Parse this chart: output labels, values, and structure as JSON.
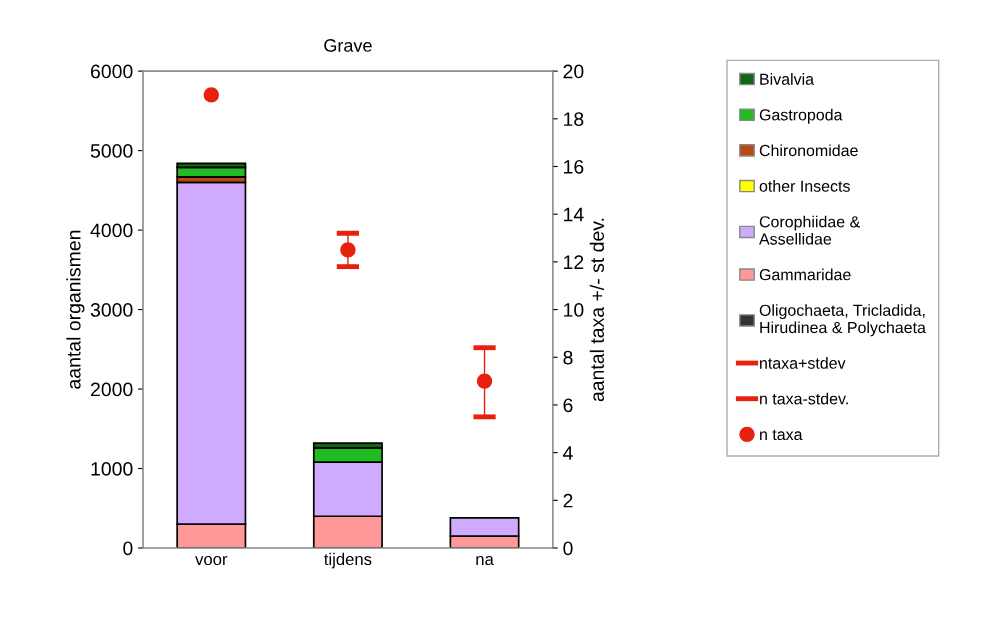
{
  "chart_data": {
    "type": "bar",
    "title": "Grave",
    "ylabel": "aantal organismen",
    "y2label": "aantal taxa +/- st dev.",
    "categories": [
      "voor",
      "tijdens",
      "na"
    ],
    "stacked": true,
    "ylim": [
      0,
      6000
    ],
    "yticks": [
      0,
      1000,
      2000,
      3000,
      4000,
      5000,
      6000
    ],
    "y2lim": [
      0,
      20
    ],
    "y2ticks": [
      0,
      2,
      4,
      6,
      8,
      10,
      12,
      14,
      16,
      18,
      20
    ],
    "legend": "right",
    "grid": false,
    "series": [
      {
        "name": "Oligochaeta, Tricladida, Hirudinea & Polychaeta",
        "color": "#333333",
        "values": [
          null,
          0,
          0
        ]
      },
      {
        "name": "Gammaridae",
        "color": "#ff9999",
        "values": [
          300,
          400,
          150
        ]
      },
      {
        "name": "Corophiidae & Assellidae",
        "color": "#cfaaff",
        "values": [
          4300,
          680,
          230
        ]
      },
      {
        "name": "other Insects",
        "color": "#ffff00",
        "values": [
          0,
          0,
          0
        ]
      },
      {
        "name": "Chironomidae",
        "color": "#b84a10",
        "values": [
          70,
          0,
          0
        ]
      },
      {
        "name": "Gastropoda",
        "color": "#22bb22",
        "values": [
          120,
          180,
          0
        ]
      },
      {
        "name": "Bivalvia",
        "color": "#116611",
        "values": [
          50,
          60,
          0
        ]
      },
      {
        "name": "ntaxa+stdev",
        "type": "scatter",
        "axis": "y2",
        "color": "#e82010",
        "values": [
          null,
          null,
          null
        ]
      },
      {
        "name": "n taxa-stdev.",
        "type": "scatter",
        "axis": "y2",
        "color": "#e82010",
        "values": [
          null,
          null,
          null
        ]
      },
      {
        "name": "n taxa",
        "type": "scatter",
        "axis": "y2",
        "marker": "circle",
        "color": "#e82010",
        "values": [
          19.0,
          12.5,
          7.0
        ],
        "errors": [
          null,
          [
            11.8,
            13.2
          ],
          [
            5.5,
            8.4
          ]
        ]
      }
    ]
  }
}
